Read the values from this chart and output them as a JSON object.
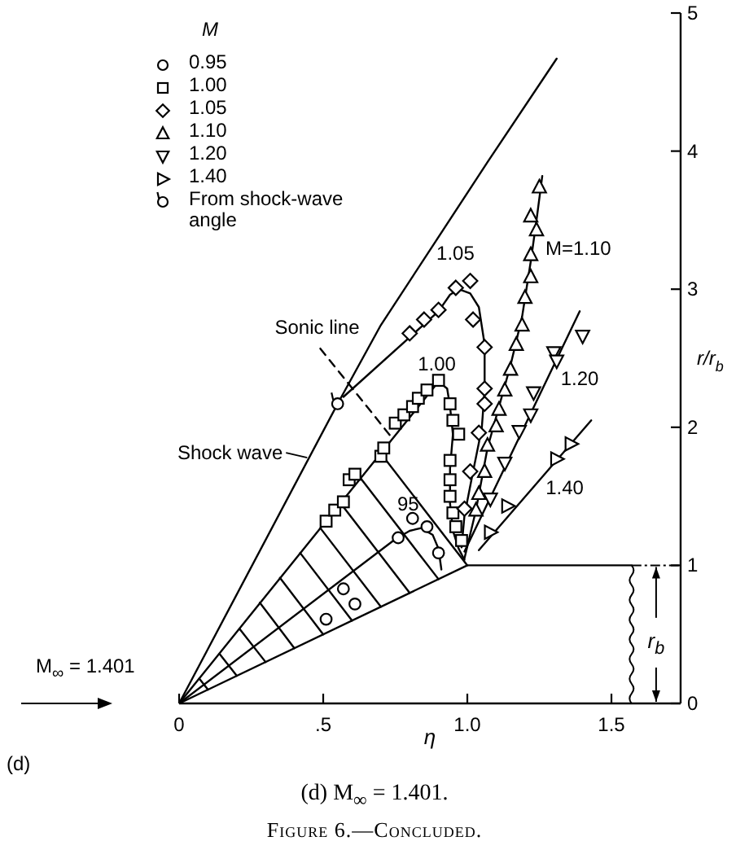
{
  "chart_data": {
    "type": "scatter",
    "xlabel": "η",
    "ylabel": "r/r$_{b}$",
    "xlim": [
      0,
      1.74
    ],
    "ylim": [
      0,
      5
    ],
    "xticks": [
      0,
      {
        "value": 0.5,
        "label": ".5"
      },
      {
        "value": 1,
        "label": "1.0"
      },
      1.5
    ],
    "yticks": [
      0,
      1,
      2,
      3,
      4,
      5
    ],
    "legend": "top left",
    "legend_title": "M",
    "series": [
      {
        "type": "line",
        "color": "#000000",
        "x": [
          0,
          0.55,
          0.7,
          1.07,
          1.31
        ],
        "values": [
          0,
          2.17,
          2.74,
          3.92,
          4.67
        ]
      },
      {
        "type": "line",
        "color": "#000000",
        "x": [
          0,
          1,
          1.57
        ],
        "values": [
          0,
          1,
          1
        ]
      },
      {
        "type": "line",
        "color": "#000000",
        "line_style": "dashed",
        "x": [
          0.49,
          0.74
        ],
        "values": [
          2.57,
          1.92
        ]
      },
      {
        "type": "line",
        "color": "#000000",
        "x": [
          0.07,
          0.1
        ],
        "values": [
          0.18,
          0.1
        ]
      },
      {
        "type": "line",
        "color": "#000000",
        "x": [
          0.14,
          0.2
        ],
        "values": [
          0.36,
          0.2
        ]
      },
      {
        "type": "line",
        "color": "#000000",
        "x": [
          0.21,
          0.3
        ],
        "values": [
          0.54,
          0.3
        ]
      },
      {
        "type": "line",
        "color": "#000000",
        "x": [
          0.28,
          0.4
        ],
        "values": [
          0.73,
          0.4
        ]
      },
      {
        "type": "line",
        "color": "#000000",
        "x": [
          0.35,
          0.5
        ],
        "values": [
          0.91,
          0.5
        ]
      },
      {
        "type": "line",
        "color": "#000000",
        "x": [
          0.42,
          0.6
        ],
        "values": [
          1.09,
          0.6
        ]
      },
      {
        "type": "line",
        "color": "#000000",
        "x": [
          0.49,
          0.7
        ],
        "values": [
          1.27,
          0.7
        ]
      },
      {
        "type": "line",
        "color": "#000000",
        "x": [
          0.56,
          0.8
        ],
        "values": [
          1.45,
          0.8
        ]
      },
      {
        "type": "line",
        "color": "#000000",
        "x": [
          0.63,
          0.9
        ],
        "values": [
          1.63,
          0.9
        ]
      },
      {
        "type": "line",
        "color": "#000000",
        "x": [
          0.7,
          1.0
        ],
        "values": [
          1.81,
          1.0
        ]
      },
      {
        "type": "line",
        "color": "#000000",
        "x": [
          0,
          0.75,
          0.8,
          0.84,
          0.88,
          0.9,
          0.91
        ],
        "values": [
          0,
          1.19,
          1.25,
          1.27,
          1.22,
          1.12,
          0.97
        ]
      },
      {
        "type": "line",
        "color": "#000000",
        "x": [
          0,
          0.9,
          0.93,
          0.94,
          0.95,
          0.94,
          0.94,
          0.95,
          0.97,
          0.99
        ],
        "values": [
          0,
          2.33,
          2.28,
          2.15,
          1.95,
          1.7,
          1.45,
          1.25,
          1.12,
          1.04
        ]
      },
      {
        "type": "line",
        "color": "#000000",
        "x": [
          0.57,
          0.9,
          0.94,
          0.97,
          1.01,
          1.04,
          1.06,
          1.06,
          1.05,
          1.02,
          0.99,
          0.98
        ],
        "values": [
          2.22,
          2.84,
          2.96,
          3.0,
          2.97,
          2.87,
          2.6,
          2.27,
          1.99,
          1.68,
          1.36,
          1.13
        ]
      },
      {
        "type": "line",
        "color": "#000000",
        "x": [
          0.99,
          1.03,
          1.07,
          1.11,
          1.15,
          1.19,
          1.22,
          1.24,
          1.26
        ],
        "values": [
          1.05,
          1.4,
          1.85,
          2.15,
          2.45,
          2.8,
          3.2,
          3.5,
          3.82
        ]
      },
      {
        "type": "line",
        "color": "#000000",
        "x": [
          0.99,
          1.39
        ],
        "values": [
          1.1,
          2.84
        ]
      },
      {
        "type": "line",
        "color": "#000000",
        "x": [
          1.04,
          1.43
        ],
        "values": [
          1.11,
          2.05
        ]
      },
      {
        "name": "0.95",
        "color": "#000000",
        "marker": "circle",
        "x": [
          0.51,
          0.57,
          0.61,
          0.76,
          0.81,
          0.86,
          0.9
        ],
        "values": [
          0.61,
          0.83,
          0.72,
          1.2,
          1.34,
          1.28,
          1.09
        ]
      },
      {
        "name": "1.00",
        "color": "#000000",
        "marker": "square",
        "x": [
          0.51,
          0.54,
          0.57,
          0.59,
          0.61,
          0.7,
          0.71,
          0.75,
          0.78,
          0.81,
          0.83,
          0.86,
          0.9,
          0.94,
          0.95,
          0.97,
          0.94,
          0.94,
          0.94,
          0.95,
          0.96,
          0.98
        ],
        "values": [
          1.32,
          1.4,
          1.46,
          1.62,
          1.66,
          1.79,
          1.85,
          2.03,
          2.09,
          2.15,
          2.21,
          2.27,
          2.34,
          2.17,
          2.05,
          1.95,
          1.76,
          1.62,
          1.5,
          1.38,
          1.28,
          1.18
        ]
      },
      {
        "name": "1.05",
        "color": "#000000",
        "marker": "diamond",
        "x": [
          0.8,
          0.85,
          0.9,
          0.96,
          1.01,
          1.02,
          1.06,
          1.06,
          1.06,
          1.04,
          1.01,
          0.99
        ],
        "values": [
          2.68,
          2.78,
          2.85,
          3.01,
          3.06,
          2.78,
          2.58,
          2.28,
          2.17,
          1.96,
          1.68,
          1.41
        ]
      },
      {
        "name": "1.10",
        "color": "#000000",
        "marker": "triangle",
        "x": [
          1.25,
          1.22,
          1.24,
          1.22,
          1.22,
          1.2,
          1.19,
          1.17,
          1.15,
          1.13,
          1.11,
          1.1,
          1.07,
          1.06,
          1.04,
          1.03
        ],
        "values": [
          3.74,
          3.53,
          3.43,
          3.25,
          3.09,
          2.94,
          2.74,
          2.6,
          2.42,
          2.27,
          2.13,
          2.01,
          1.87,
          1.68,
          1.52,
          1.4
        ]
      },
      {
        "name": "1.20",
        "color": "#000000",
        "marker": "triangle-down",
        "x": [
          1.4,
          1.3,
          1.31,
          1.23,
          1.22,
          1.18,
          1.13,
          1.08
        ],
        "values": [
          2.66,
          2.54,
          2.48,
          2.25,
          2.09,
          1.97,
          1.74,
          1.48
        ]
      },
      {
        "name": "1.40",
        "color": "#000000",
        "marker": "triangle-right",
        "x": [
          1.36,
          1.31,
          1.14,
          1.08
        ],
        "values": [
          1.88,
          1.77,
          1.43,
          1.24
        ]
      },
      {
        "name": "From shock-wave angle",
        "color": "#000000",
        "marker": "circle",
        "x": [
          0.55
        ],
        "values": [
          2.17
        ]
      }
    ],
    "annotations": [
      {
        "text": "Shock wave",
        "x": 0.45,
        "y": 1.78
      },
      {
        "text": "Sonic line",
        "x": 0.49,
        "y": 2.57
      },
      {
        "text": "1.05",
        "x": 0.97,
        "y": 3.0
      },
      {
        "text": "1.00",
        "x": 0.9,
        "y": 2.33
      },
      {
        "text": "95",
        "x": 0.84,
        "y": 1.27
      },
      {
        "text": "M=1.10",
        "x": 1.22,
        "y": 3.2
      },
      {
        "text": "1.20",
        "x": 1.29,
        "y": 2.41
      },
      {
        "text": "1.40",
        "x": 1.3,
        "y": 1.74
      },
      "r$_{b}$",
      "M$_{∞}$ = 1.401",
      "(d)",
      "(d)  M$_{∞}$ = 1.401.",
      "Figure 6.—Concluded."
    ]
  }
}
